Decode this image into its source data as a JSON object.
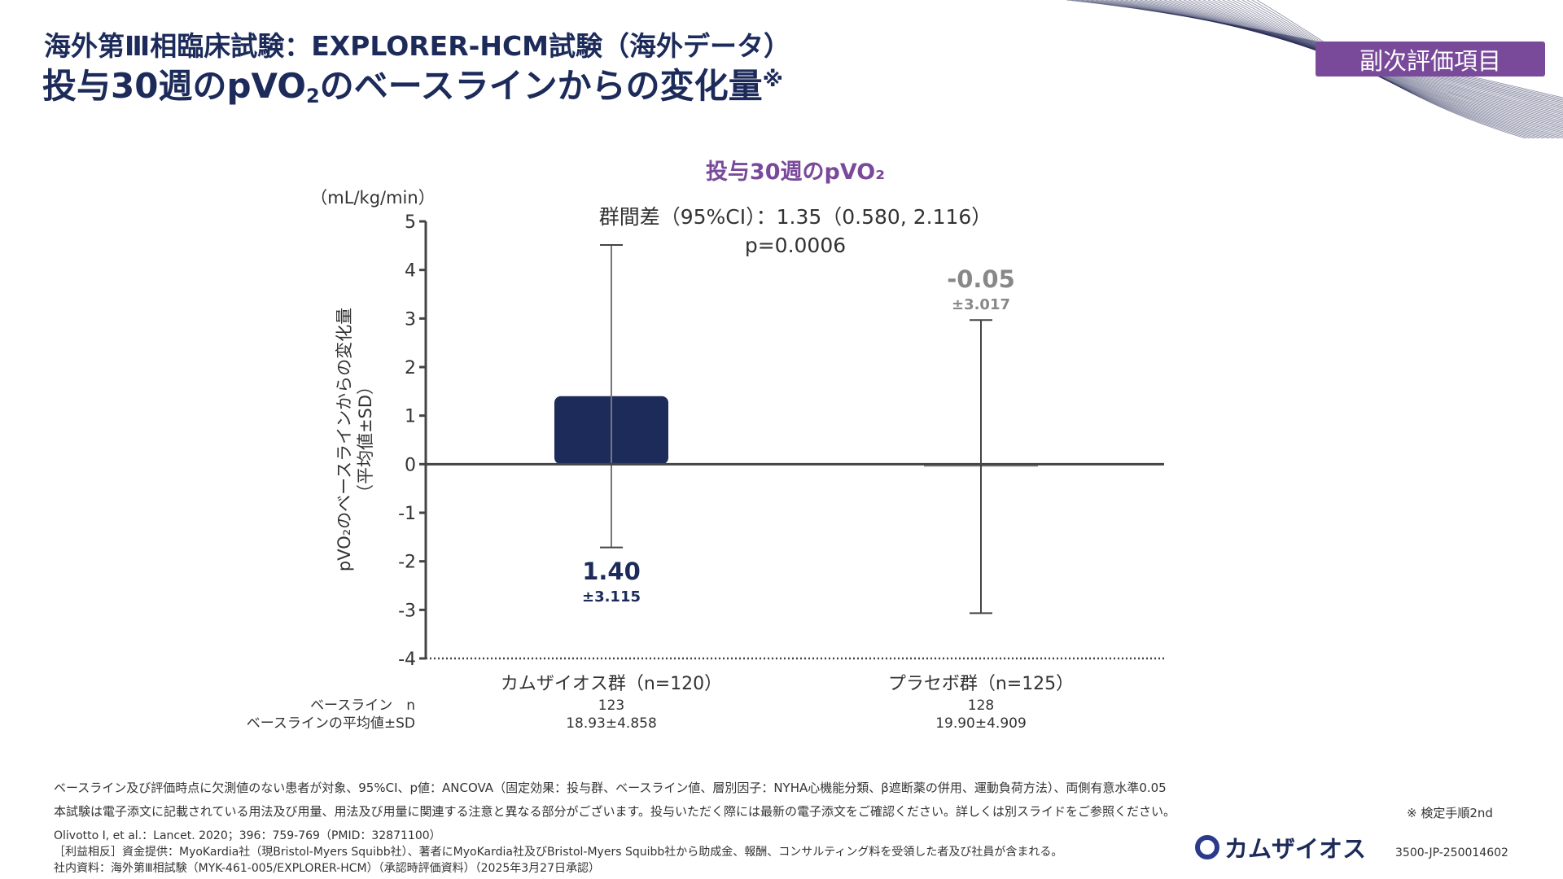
{
  "header": {
    "title_line1": "海外第Ⅲ相臨床試験：EXPLORER-HCM試験（海外データ）",
    "title_line2_a": "投与30週のpVO",
    "title_line2_sub": "2",
    "title_line2_b": "のベースラインからの変化量",
    "title_line2_mark": "※",
    "badge": "副次評価項目"
  },
  "colors": {
    "navy": "#1c2b5a",
    "bar_navy": "#1c2b5a",
    "purple": "#7a4a9a",
    "gray": "#888888"
  },
  "chart_data": {
    "type": "bar",
    "title": "投与30週のpVO₂",
    "unit_label": "（mL/kg/min）",
    "ylabel_line1": "pVO₂のベースラインからの変化量",
    "ylabel_line2": "（平均値±SD）",
    "ylim": [
      -4,
      5
    ],
    "yticks": [
      "5",
      "4",
      "3",
      "2",
      "1",
      "0",
      "-1",
      "-2",
      "-3",
      "-4"
    ],
    "yticks_values": [
      5,
      4,
      3,
      2,
      1,
      0,
      -1,
      -2,
      -3,
      -4
    ],
    "categories": [
      "カムザイオス群（n=120）",
      "プラセボ群（n=125）"
    ],
    "values": [
      1.4,
      -0.05
    ],
    "sd": [
      3.115,
      3.017
    ],
    "value_labels": [
      "1.40",
      "-0.05"
    ],
    "sd_labels": [
      "±3.115",
      "±3.017"
    ],
    "annotation_line1": "群間差（95%CI）：1.35（0.580, 2.116）",
    "annotation_line2": "p=0.0006",
    "baseline_row_labels": [
      "ベースライン　n",
      "ベースラインの平均値±SD"
    ],
    "baseline_n": [
      "123",
      "128"
    ],
    "baseline_mean": [
      "18.93±4.858",
      "19.90±4.909"
    ]
  },
  "footer": {
    "note1": "ベースライン及び評価時点に欠測値のない患者が対象、95%CI、p値：ANCOVA（固定効果：投与群、ベースライン値、層別因子：NYHA心機能分類、β遮断薬の併用、運動負荷方法）、両側有意水準0.05",
    "note2": "本試験は電子添文に記載されている用法及び用量、用法及び用量に関連する注意と異なる部分がございます。投与いただく際には最新の電子添文をご確認ください。詳しくは別スライドをご参照ください。",
    "review": "※ 検定手順2nd",
    "ref1": "Olivotto I, et al.：Lancet. 2020；396：759-769（PMID：32871100）",
    "ref2": "［利益相反］資金提供：MyoKardia社（現Bristol-Myers Squibb社）、著者にMyoKardia社及びBristol-Myers Squibb社から助成金、報酬、コンサルティング料を受領した者及び社員が含まれる。",
    "ref3": "社内資料：海外第Ⅲ相試験（MYK-461-005/EXPLORER-HCM）（承認時評価資料）（2025年3月27日承認）",
    "logo_text": "カムザイオス",
    "code": "3500-JP-250014602"
  }
}
